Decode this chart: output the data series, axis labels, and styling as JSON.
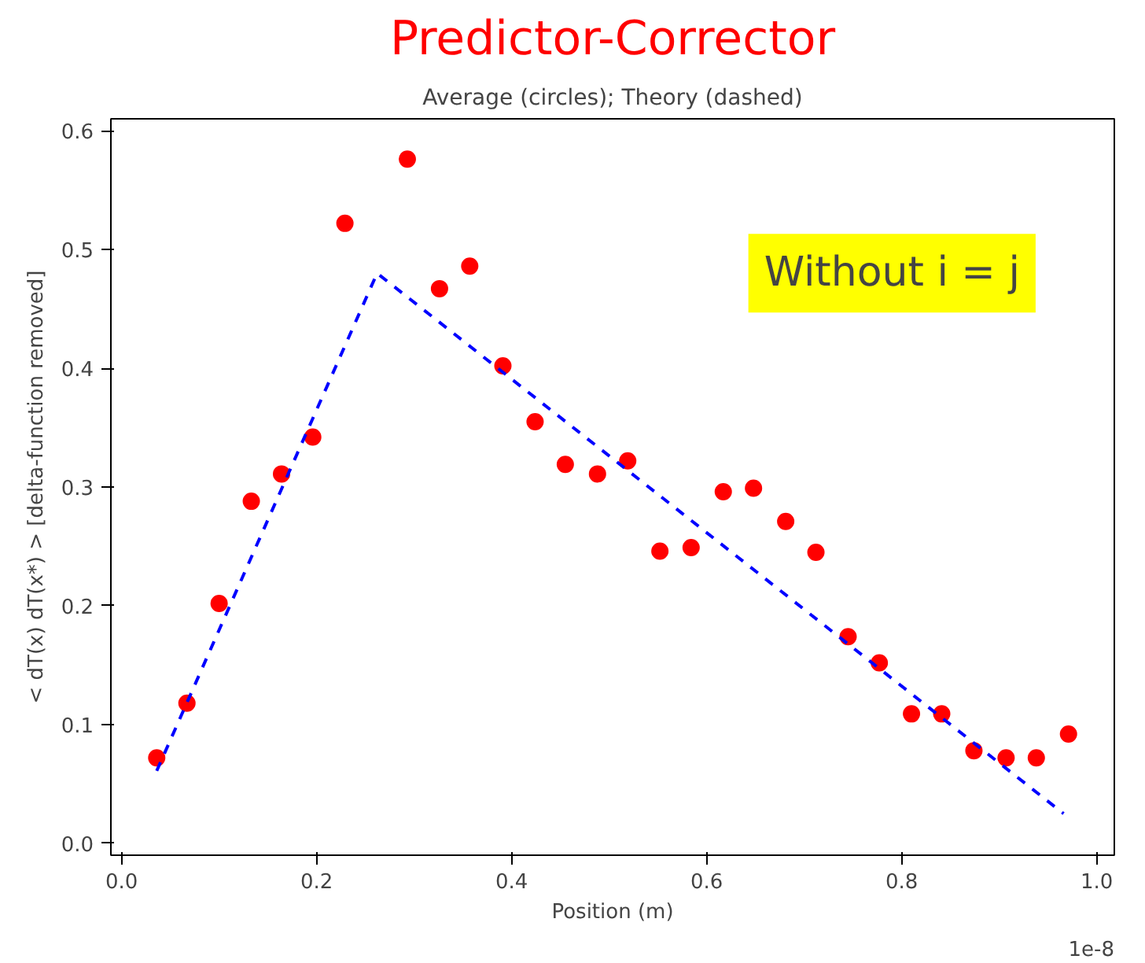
{
  "chart_data": {
    "type": "scatter",
    "title": "Predictor-Corrector",
    "subtitle": "Average (circles); Theory (dashed)",
    "xlabel": "Position (m)",
    "ylabel": "< dT(x) dT(x*) > [delta-function removed]",
    "annotations": [
      "Without i = j",
      "1e-8"
    ],
    "series": [
      {
        "color": "#ff0000",
        "marker": "circle",
        "x": [
          0.036,
          0.067,
          0.1,
          0.133,
          0.164,
          0.196,
          0.229,
          0.293,
          0.326,
          0.357,
          0.391,
          0.424,
          0.455,
          0.488,
          0.519,
          0.552,
          0.584,
          0.617,
          0.648,
          0.681,
          0.712,
          0.745,
          0.777,
          0.81,
          0.841,
          0.874,
          0.907,
          0.938,
          0.971
        ],
        "values": [
          0.072,
          0.118,
          0.202,
          0.288,
          0.311,
          0.342,
          0.522,
          0.576,
          0.467,
          0.486,
          0.402,
          0.355,
          0.319,
          0.311,
          0.322,
          0.246,
          0.249,
          0.296,
          0.299,
          0.271,
          0.245,
          0.174,
          0.152,
          0.109,
          0.109,
          0.078,
          0.072,
          0.072,
          0.092
        ]
      },
      {
        "type": "line",
        "color": "#0000ff",
        "line_style": "dashed",
        "marker": "none",
        "x": [
          0.036,
          0.262,
          0.966
        ],
        "values": [
          0.061,
          0.48,
          0.025
        ]
      }
    ],
    "xlim": [
      -0.011,
      1.018
    ],
    "ylim": [
      -0.01,
      0.61
    ],
    "xticks": [
      {
        "value": 0.0,
        "label": "0.0"
      },
      {
        "value": 0.2,
        "label": "0.2"
      },
      {
        "value": 0.4,
        "label": "0.4"
      },
      {
        "value": 0.6,
        "label": "0.6"
      },
      {
        "value": 0.8,
        "label": "0.8"
      },
      {
        "value": 1.0,
        "label": "1.0"
      }
    ],
    "yticks": [
      {
        "value": 0.0,
        "label": "0.0"
      },
      {
        "value": 0.1,
        "label": "0.1"
      },
      {
        "value": 0.2,
        "label": "0.2"
      },
      {
        "value": 0.3,
        "label": "0.3"
      },
      {
        "value": 0.4,
        "label": "0.4"
      },
      {
        "value": 0.5,
        "label": "0.5"
      },
      {
        "value": 0.6,
        "label": "0.6"
      }
    ],
    "grid": false
  }
}
